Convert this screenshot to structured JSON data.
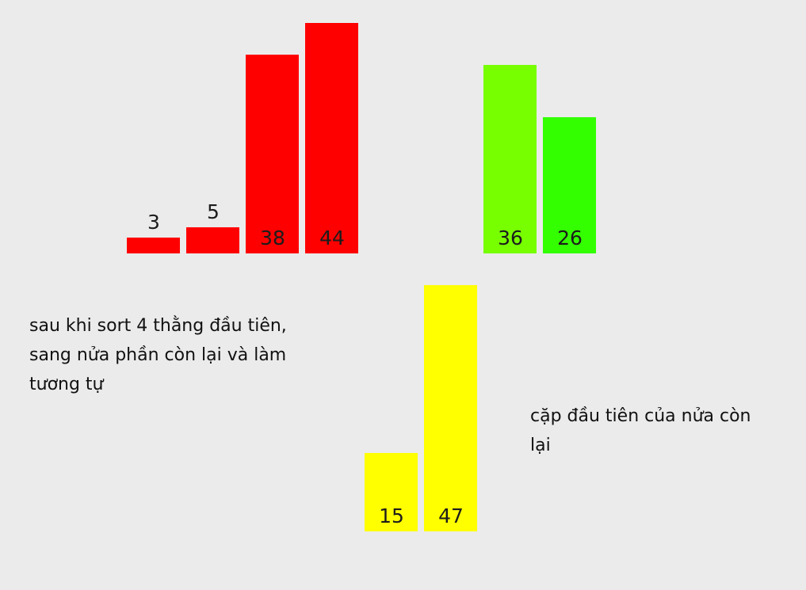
{
  "groups": [
    {
      "name": "sorted-first-four",
      "color": "#ff0000",
      "bars": [
        {
          "value": "3",
          "label_position": "above"
        },
        {
          "value": "5",
          "label_position": "above"
        },
        {
          "value": "38",
          "label_position": "inside"
        },
        {
          "value": "44",
          "label_position": "inside"
        }
      ]
    },
    {
      "name": "remaining-pair",
      "bars": [
        {
          "value": "36",
          "color": "#77ff00",
          "label_position": "inside"
        },
        {
          "value": "26",
          "color": "#33ff00",
          "label_position": "inside"
        }
      ]
    },
    {
      "name": "first-pair-of-rest",
      "color": "#ffff00",
      "bars": [
        {
          "value": "15",
          "label_position": "inside"
        },
        {
          "value": "47",
          "label_position": "inside"
        }
      ]
    }
  ],
  "notes": {
    "left": [
      "sau khi sort 4 thằng đầu tiên,",
      "sang nửa phần còn lại và làm",
      "tương tự"
    ],
    "right": [
      "cặp đầu tiên của nửa còn",
      "lại"
    ]
  }
}
